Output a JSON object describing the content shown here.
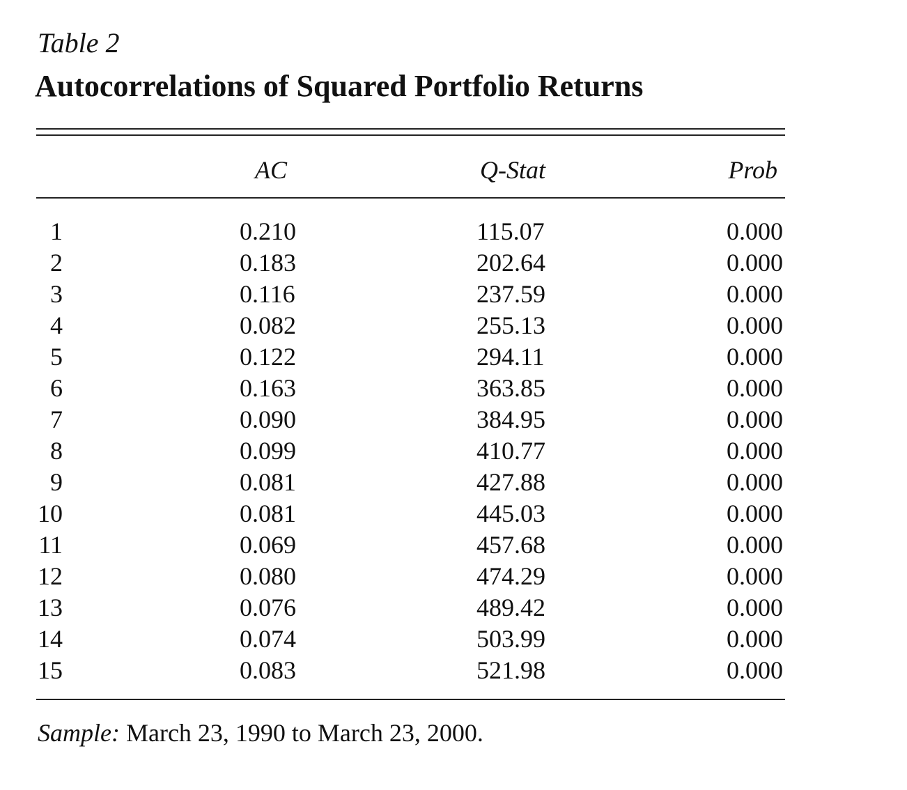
{
  "table": {
    "label": "Table 2",
    "title": "Autocorrelations of Squared Portfolio Returns",
    "columns": [
      "",
      "AC",
      "Q-Stat",
      "Prob"
    ],
    "rows": [
      {
        "lag": "1",
        "ac": "0.210",
        "qstat": "115.07",
        "prob": "0.000"
      },
      {
        "lag": "2",
        "ac": "0.183",
        "qstat": "202.64",
        "prob": "0.000"
      },
      {
        "lag": "3",
        "ac": "0.116",
        "qstat": "237.59",
        "prob": "0.000"
      },
      {
        "lag": "4",
        "ac": "0.082",
        "qstat": "255.13",
        "prob": "0.000"
      },
      {
        "lag": "5",
        "ac": "0.122",
        "qstat": "294.11",
        "prob": "0.000"
      },
      {
        "lag": "6",
        "ac": "0.163",
        "qstat": "363.85",
        "prob": "0.000"
      },
      {
        "lag": "7",
        "ac": "0.090",
        "qstat": "384.95",
        "prob": "0.000"
      },
      {
        "lag": "8",
        "ac": "0.099",
        "qstat": "410.77",
        "prob": "0.000"
      },
      {
        "lag": "9",
        "ac": "0.081",
        "qstat": "427.88",
        "prob": "0.000"
      },
      {
        "lag": "10",
        "ac": "0.081",
        "qstat": "445.03",
        "prob": "0.000"
      },
      {
        "lag": "11",
        "ac": "0.069",
        "qstat": "457.68",
        "prob": "0.000"
      },
      {
        "lag": "12",
        "ac": "0.080",
        "qstat": "474.29",
        "prob": "0.000"
      },
      {
        "lag": "13",
        "ac": "0.076",
        "qstat": "489.42",
        "prob": "0.000"
      },
      {
        "lag": "14",
        "ac": "0.074",
        "qstat": "503.99",
        "prob": "0.000"
      },
      {
        "lag": "15",
        "ac": "0.083",
        "qstat": "521.98",
        "prob": "0.000"
      }
    ],
    "note_label": "Sample:",
    "note_text": " March 23, 1990 to March 23, 2000."
  }
}
